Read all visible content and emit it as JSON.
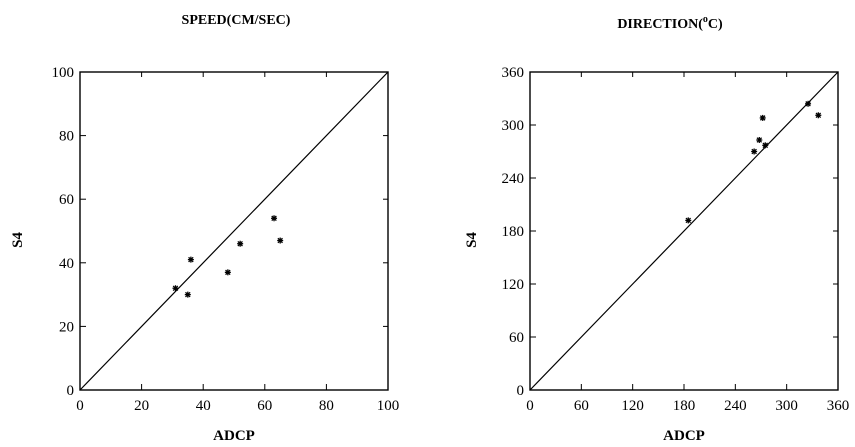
{
  "chart_data": [
    {
      "type": "scatter",
      "title": "SPEED(CM/SEC)",
      "xlabel": "ADCP",
      "ylabel": "S4",
      "xlim": [
        0,
        100
      ],
      "ylim": [
        0,
        100
      ],
      "xticks": [
        "0",
        "20",
        "40",
        "60",
        "80",
        "100"
      ],
      "yticks": [
        "0",
        "20",
        "40",
        "60",
        "80",
        "100"
      ],
      "reference_line": "1:1",
      "grid": false,
      "series": [
        {
          "x": [
            31,
            35,
            36,
            48,
            52,
            63,
            65
          ],
          "y": [
            32,
            30,
            41,
            37,
            46,
            54,
            47
          ]
        }
      ]
    },
    {
      "type": "scatter",
      "title_main": "DIRECTION(",
      "title_sup": "o",
      "title_end": "C)",
      "xlabel": "ADCP",
      "ylabel": "S4",
      "xlim": [
        0,
        360
      ],
      "ylim": [
        0,
        360
      ],
      "xticks": [
        "0",
        "60",
        "120",
        "180",
        "240",
        "300",
        "360"
      ],
      "yticks": [
        "0",
        "60",
        "120",
        "180",
        "240",
        "300",
        "360"
      ],
      "reference_line": "1:1",
      "grid": false,
      "series": [
        {
          "x": [
            185,
            262,
            268,
            272,
            275,
            325,
            337
          ],
          "y": [
            192,
            270,
            283,
            308,
            277,
            324,
            311
          ]
        }
      ]
    }
  ]
}
